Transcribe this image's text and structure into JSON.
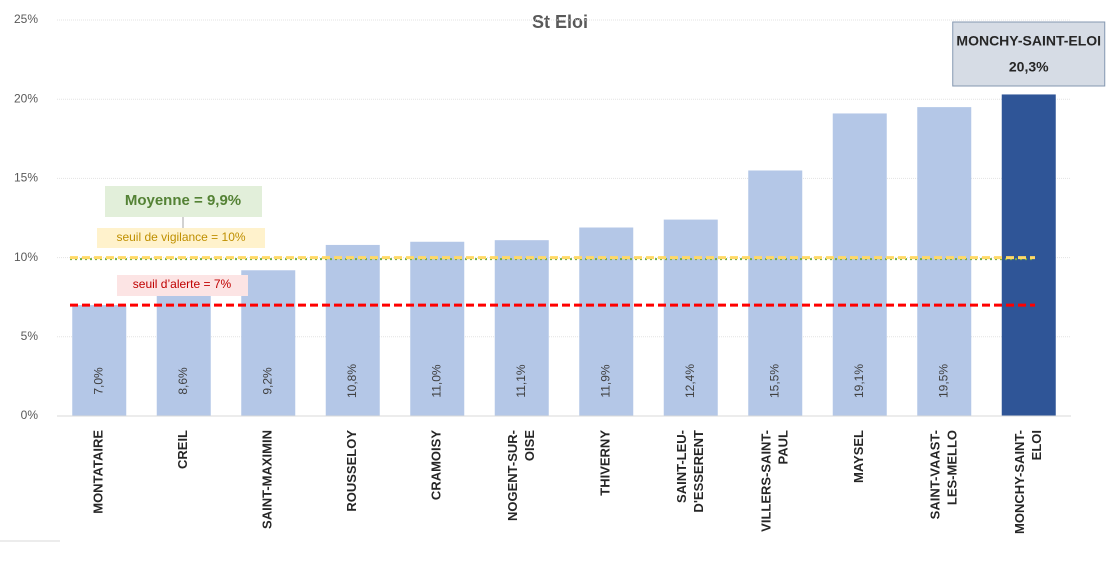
{
  "chart_data": {
    "type": "bar",
    "title": "St Eloi",
    "categories": [
      "MONTATAIRE",
      "CREIL",
      "SAINT-MAXIMIN",
      "ROUSSELOY",
      "CRAMOISY",
      "NOGENT-SUR-\nOISE",
      "THIVERNY",
      "SAINT-LEU-\nD'ESSERENT",
      "VILLERS-SAINT-\nPAUL",
      "MAYSEL",
      "SAINT-VAAST-\nLES-MELLO",
      "MONCHY-SAINT-\nELOI"
    ],
    "values": [
      7.0,
      8.6,
      9.2,
      10.8,
      11.0,
      11.1,
      11.9,
      12.4,
      15.5,
      19.1,
      19.5,
      20.3
    ],
    "value_labels": [
      "7,0%",
      "8,6%",
      "9,2%",
      "10,8%",
      "11,0%",
      "11,1%",
      "11,9%",
      "12,4%",
      "15,5%",
      "19,1%",
      "19,5%",
      "20,3%"
    ],
    "colors": [
      "#b4c7e7",
      "#b4c7e7",
      "#b4c7e7",
      "#b4c7e7",
      "#b4c7e7",
      "#b4c7e7",
      "#b4c7e7",
      "#b4c7e7",
      "#b4c7e7",
      "#b4c7e7",
      "#b4c7e7",
      "#2f5597"
    ],
    "callout_title": "MONCHY-SAINT-ELOI",
    "ylim": [
      0,
      25
    ],
    "yticks": [
      {
        "value": 0,
        "label": "0%"
      },
      {
        "value": 5,
        "label": "5%"
      },
      {
        "value": 10,
        "label": "10%"
      },
      {
        "value": 15,
        "label": "15%"
      },
      {
        "value": 20,
        "label": "20%"
      },
      {
        "value": 25,
        "label": "25%"
      }
    ],
    "grid": true,
    "reference_lines": [
      {
        "label": "Moyenne = 9,9%",
        "value": 9.9,
        "color": "#70ad47"
      },
      {
        "label": "seuil de vigilance = 10%",
        "value": 10,
        "color": "#ffd966"
      },
      {
        "label": "seuil d’alerte = 7%",
        "value": 7,
        "color": "#ff0000"
      }
    ]
  }
}
